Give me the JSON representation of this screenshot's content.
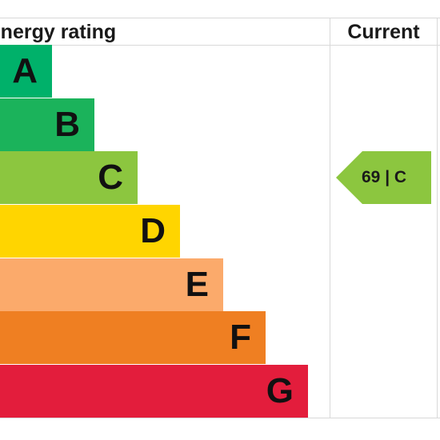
{
  "chart_data": {
    "type": "bar",
    "title": "Energy rating",
    "column_header": "Current",
    "bands": [
      {
        "letter": "A",
        "color": "#00b16a",
        "rank": 1
      },
      {
        "letter": "B",
        "color": "#1bb35b",
        "rank": 2
      },
      {
        "letter": "C",
        "color": "#8cc63f",
        "rank": 3
      },
      {
        "letter": "D",
        "color": "#ffd500",
        "rank": 4
      },
      {
        "letter": "E",
        "color": "#fbaa6b",
        "rank": 5
      },
      {
        "letter": "F",
        "color": "#ef7f22",
        "rank": 6
      },
      {
        "letter": "G",
        "color": "#e31d3c",
        "rank": 7
      }
    ],
    "current": {
      "score": 69,
      "band": "C",
      "label": "69 | C",
      "color": "#8cc63f"
    }
  }
}
